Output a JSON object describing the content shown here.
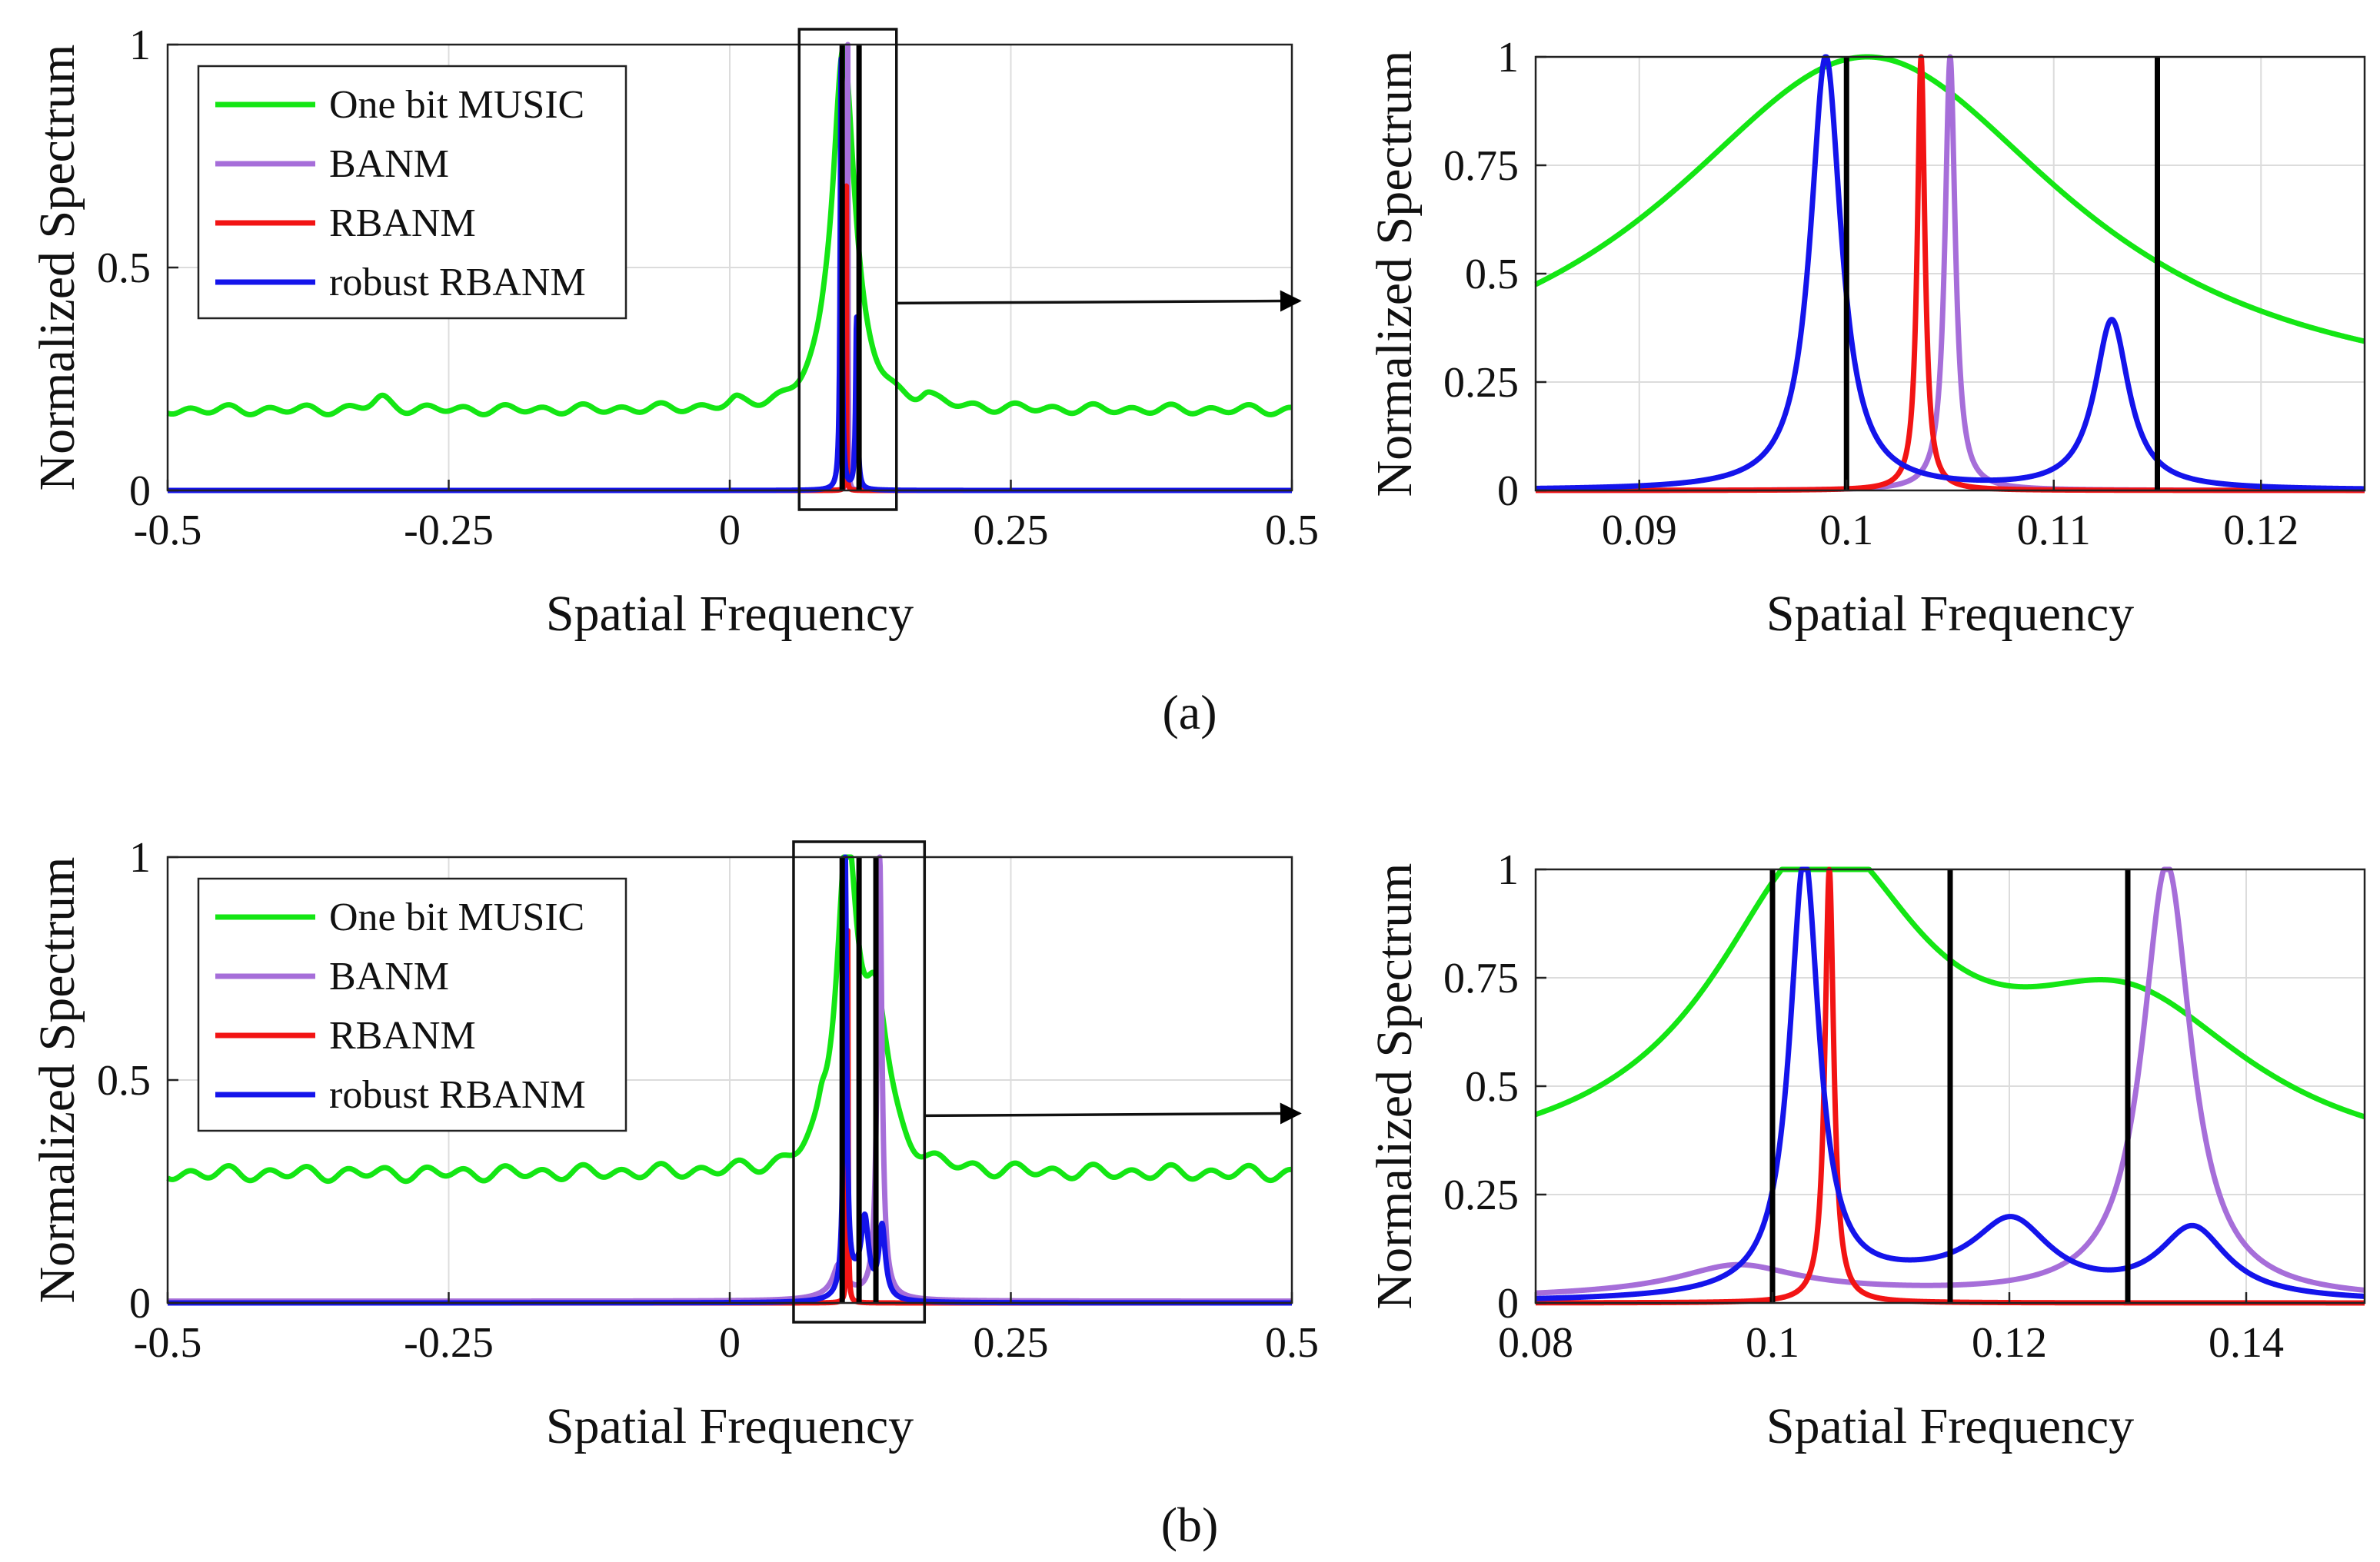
{
  "figure": {
    "caption_a": "(a)",
    "caption_b": "(b)"
  },
  "colors": {
    "music": "#14e614",
    "banm": "#a66ed9",
    "rbanm": "#f21414",
    "robust": "#1414eb",
    "truth": "#000000",
    "grid": "#dcdcdc"
  },
  "chart_data": [
    {
      "id": "a_full",
      "type": "line",
      "xlabel": "Spatial Frequency",
      "ylabel": "Normalized Spectrum",
      "xlim": [
        -0.5,
        0.5
      ],
      "ylim": [
        0,
        1
      ],
      "xticks": [
        -0.5,
        -0.25,
        0,
        0.25,
        0.5
      ],
      "xtick_labels": [
        "-0.5",
        "-0.25",
        "0",
        "0.25",
        "0.5"
      ],
      "yticks": [
        0,
        0.5,
        1
      ],
      "ytick_labels": [
        "0",
        "0.5",
        "1"
      ],
      "legend": [
        "One bit MUSIC",
        "BANM",
        "RBANM",
        "robust RBANM"
      ],
      "legend_position": "top-left",
      "zoom_box": {
        "x": [
          0.085,
          0.125
        ],
        "arrow": "right"
      },
      "true_frequencies": [
        0.1,
        0.115
      ],
      "series": [
        {
          "name": "One bit MUSIC",
          "key": "music",
          "baseline": 0.18,
          "ripple": 0.008,
          "peaks": [
            [
              0.101,
              0.82,
              0.012
            ],
            [
              -0.31,
              0.025,
              0.01
            ],
            [
              0.175,
              0.02,
              0.008
            ],
            [
              0.085,
              0.012,
              0.005
            ],
            [
              0.005,
              0.01,
              0.006
            ]
          ]
        },
        {
          "name": "BANM",
          "key": "banm",
          "baseline": 0,
          "peaks": [
            [
              0.105,
              1.0,
              0.0003
            ]
          ]
        },
        {
          "name": "RBANM",
          "key": "rbanm",
          "baseline": 0,
          "peaks": [
            [
              0.1036,
              1.0,
              0.00022
            ]
          ]
        },
        {
          "name": "robust RBANM",
          "key": "robust",
          "baseline": 0,
          "peaks": [
            [
              0.099,
              1.0,
              0.0009
            ],
            [
              0.1128,
              0.39,
              0.001
            ]
          ]
        }
      ]
    },
    {
      "id": "a_zoom",
      "type": "line",
      "xlabel": "Spatial Frequency",
      "ylabel": "Normalized Spectrum",
      "xlim": [
        0.085,
        0.125
      ],
      "ylim": [
        0,
        1
      ],
      "xticks": [
        0.09,
        0.1,
        0.11,
        0.12
      ],
      "xtick_labels": [
        "0.09",
        "0.1",
        "0.11",
        "0.12"
      ],
      "yticks": [
        0,
        0.25,
        0.5,
        0.75,
        1
      ],
      "ytick_labels": [
        "0",
        "0.25",
        "0.5",
        "0.75",
        "1"
      ],
      "true_frequencies": [
        0.1,
        0.115
      ],
      "series": [
        {
          "name": "One bit MUSIC",
          "key": "music",
          "baseline": 0.18,
          "peaks": [
            [
              0.101,
              0.82,
              0.012
            ]
          ]
        },
        {
          "name": "BANM",
          "key": "banm",
          "baseline": 0,
          "peaks": [
            [
              0.105,
              1.0,
              0.0003
            ]
          ]
        },
        {
          "name": "RBANM",
          "key": "rbanm",
          "baseline": 0,
          "peaks": [
            [
              0.1036,
              1.0,
              0.00022
            ]
          ]
        },
        {
          "name": "robust RBANM",
          "key": "robust",
          "baseline": 0,
          "peaks": [
            [
              0.099,
              1.0,
              0.0009
            ],
            [
              0.1128,
              0.39,
              0.001
            ]
          ]
        }
      ]
    },
    {
      "id": "b_full",
      "type": "line",
      "xlabel": "Spatial Frequency",
      "ylabel": "Normalized Spectrum",
      "xlim": [
        -0.5,
        0.5
      ],
      "ylim": [
        0,
        1
      ],
      "xticks": [
        -0.5,
        -0.25,
        0,
        0.25,
        0.5
      ],
      "xtick_labels": [
        "-0.5",
        "-0.25",
        "0",
        "0.25",
        "0.5"
      ],
      "yticks": [
        0,
        0.5,
        1
      ],
      "ytick_labels": [
        "0",
        "0.5",
        "1"
      ],
      "legend": [
        "One bit MUSIC",
        "BANM",
        "RBANM",
        "robust RBANM"
      ],
      "legend_position": "top-left",
      "zoom_box": {
        "x": [
          0.08,
          0.15
        ],
        "arrow": "right"
      },
      "true_frequencies": [
        0.1,
        0.115,
        0.13
      ],
      "series": [
        {
          "name": "One bit MUSIC",
          "key": "music",
          "baseline": 0.29,
          "ripple": 0.012,
          "peaks": [
            [
              0.104,
              0.71,
              0.011
            ],
            [
              0.13,
              0.34,
              0.013
            ],
            [
              0.082,
              0.03,
              0.004
            ]
          ]
        },
        {
          "name": "BANM",
          "key": "banm",
          "baseline": 0.004,
          "peaks": [
            [
              0.1333,
              1.0,
              0.0025
            ],
            [
              0.097,
              0.06,
              0.006
            ],
            [
              0.1,
              0.02,
              0.02
            ]
          ]
        },
        {
          "name": "RBANM",
          "key": "rbanm",
          "baseline": 0,
          "peaks": [
            [
              0.1048,
              1.0,
              0.00045
            ]
          ]
        },
        {
          "name": "robust RBANM",
          "key": "robust",
          "baseline": 0,
          "peaks": [
            [
              0.1027,
              1.0,
              0.0015
            ],
            [
              0.1202,
              0.16,
              0.004
            ],
            [
              0.1355,
              0.16,
              0.0035
            ],
            [
              0.112,
              0.04,
              0.01
            ]
          ]
        }
      ]
    },
    {
      "id": "b_zoom",
      "type": "line",
      "xlabel": "Spatial Frequency",
      "ylabel": "Normalized Spectrum",
      "xlim": [
        0.08,
        0.15
      ],
      "ylim": [
        0,
        1
      ],
      "xticks": [
        0.08,
        0.1,
        0.12,
        0.14
      ],
      "xtick_labels": [
        "0.08",
        "0.1",
        "0.12",
        "0.14"
      ],
      "yticks": [
        0,
        0.25,
        0.5,
        0.75,
        1
      ],
      "ytick_labels": [
        "0",
        "0.25",
        "0.5",
        "0.75",
        "1"
      ],
      "true_frequencies": [
        0.1,
        0.115,
        0.13
      ],
      "series": [
        {
          "name": "One bit MUSIC",
          "key": "music",
          "baseline": 0.29,
          "peaks": [
            [
              0.104,
              0.71,
              0.011
            ],
            [
              0.13,
              0.34,
              0.013
            ]
          ]
        },
        {
          "name": "BANM",
          "key": "banm",
          "baseline": 0.004,
          "peaks": [
            [
              0.1333,
              1.0,
              0.0025
            ],
            [
              0.097,
              0.06,
              0.006
            ],
            [
              0.1,
              0.02,
              0.02
            ]
          ]
        },
        {
          "name": "RBANM",
          "key": "rbanm",
          "baseline": 0,
          "peaks": [
            [
              0.1048,
              1.0,
              0.00045
            ]
          ]
        },
        {
          "name": "robust RBANM",
          "key": "robust",
          "baseline": 0,
          "peaks": [
            [
              0.1027,
              1.0,
              0.0015
            ],
            [
              0.1202,
              0.16,
              0.004
            ],
            [
              0.1355,
              0.16,
              0.0035
            ],
            [
              0.112,
              0.04,
              0.01
            ]
          ]
        }
      ]
    }
  ]
}
